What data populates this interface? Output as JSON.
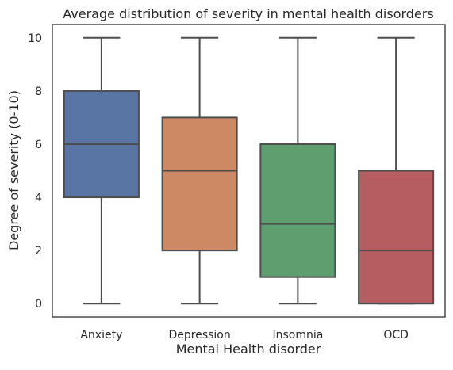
{
  "chart_data": {
    "type": "box",
    "title": "Average distribution of severity in mental health disorders",
    "xlabel": "Mental Health disorder",
    "ylabel": "Degree of severity (0-10)",
    "categories": [
      "Anxiety",
      "Depression",
      "Insomnia",
      "OCD"
    ],
    "boxes": [
      {
        "category": "Anxiety",
        "min": 0,
        "q1": 4,
        "median": 6,
        "q3": 8,
        "max": 10,
        "color": "#5875a4"
      },
      {
        "category": "Depression",
        "min": 0,
        "q1": 2,
        "median": 5,
        "q3": 7,
        "max": 10,
        "color": "#cc8963"
      },
      {
        "category": "Insomnia",
        "min": 0,
        "q1": 1,
        "median": 3,
        "q3": 6,
        "max": 10,
        "color": "#5f9e6e"
      },
      {
        "category": "OCD",
        "min": 0,
        "q1": 0,
        "median": 2,
        "q3": 5,
        "max": 10,
        "color": "#b55d60"
      }
    ],
    "ylim": [
      -0.5,
      10.5
    ],
    "yticks": [
      0,
      2,
      4,
      6,
      8,
      10
    ],
    "grid": false,
    "line_color": "#4d4d4d"
  }
}
